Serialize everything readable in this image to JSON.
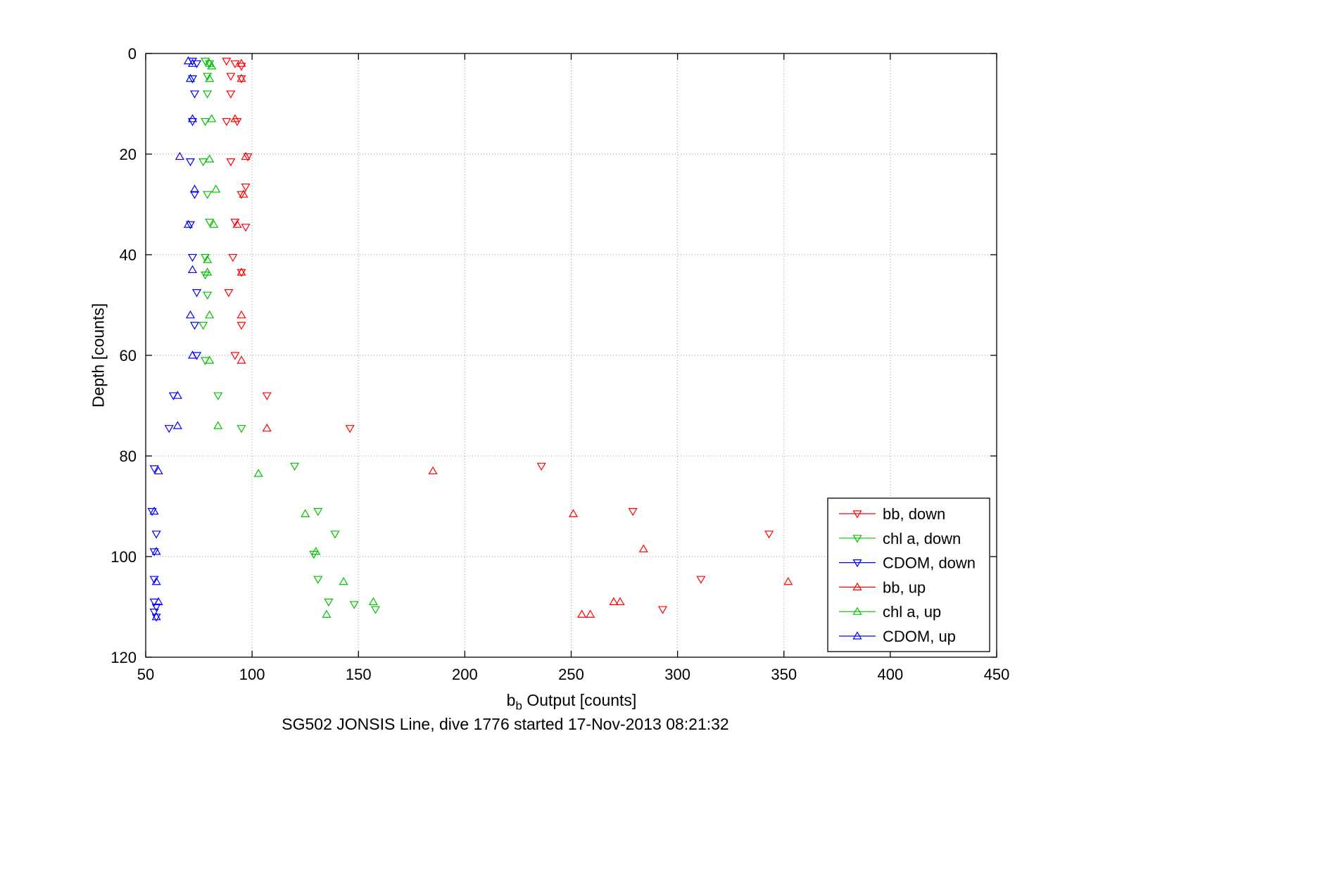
{
  "figure": {
    "bottom_title": "SG502 JONSIS Line, dive 1776 started 17-Nov-2013 08:21:32",
    "ylabel": "Depth [counts]",
    "xlabel_b": "b",
    "xlabel_sub": "b",
    "xlabel_rest": " Output [counts]"
  },
  "chart_data": {
    "type": "scatter",
    "title": "SG502 JONSIS Line, dive 1776 started 17-Nov-2013 08:21:32",
    "xlabel": "b_b Output [counts]",
    "ylabel": "Depth [counts]",
    "xlim": [
      50,
      450
    ],
    "ylim": [
      0,
      120
    ],
    "y_reversed": true,
    "xticks": [
      50,
      100,
      150,
      200,
      250,
      300,
      350,
      400,
      450
    ],
    "yticks": [
      0,
      20,
      40,
      60,
      80,
      100,
      120
    ],
    "grid": true,
    "grid_style": "dotted",
    "legend_position": "lower right",
    "series": [
      {
        "label": "bb, down",
        "marker": "triangle-down",
        "color": "#ff0000",
        "points": [
          [
            88,
            1.5
          ],
          [
            92,
            2
          ],
          [
            95,
            2.5
          ],
          [
            90,
            4.5
          ],
          [
            95,
            5
          ],
          [
            90,
            8
          ],
          [
            88,
            13.5
          ],
          [
            93,
            13.5
          ],
          [
            90,
            21.5
          ],
          [
            98,
            20.5
          ],
          [
            97,
            26.5
          ],
          [
            95,
            28
          ],
          [
            92,
            33.5
          ],
          [
            97,
            34.5
          ],
          [
            91,
            40.5
          ],
          [
            95,
            43.5
          ],
          [
            89,
            47.5
          ],
          [
            95,
            54
          ],
          [
            92,
            60
          ],
          [
            107,
            68
          ],
          [
            146,
            74.5
          ],
          [
            236,
            82
          ],
          [
            279,
            91
          ],
          [
            343,
            95.5
          ],
          [
            311,
            104.5
          ],
          [
            293,
            110.5
          ]
        ]
      },
      {
        "label": "chl a, down",
        "marker": "triangle-down",
        "color": "#00c000",
        "points": [
          [
            78,
            1.5
          ],
          [
            80,
            2
          ],
          [
            79,
            4.5
          ],
          [
            79,
            8
          ],
          [
            78,
            13.5
          ],
          [
            77,
            21.5
          ],
          [
            79,
            28
          ],
          [
            80,
            33.5
          ],
          [
            78,
            40.5
          ],
          [
            78,
            44
          ],
          [
            79,
            48
          ],
          [
            77,
            54
          ],
          [
            78,
            61
          ],
          [
            84,
            68
          ],
          [
            95,
            74.5
          ],
          [
            120,
            82
          ],
          [
            131,
            91
          ],
          [
            139,
            95.5
          ],
          [
            129,
            99.5
          ],
          [
            131,
            104.5
          ],
          [
            136,
            109
          ],
          [
            148,
            109.5
          ],
          [
            158,
            110.5
          ]
        ]
      },
      {
        "label": "CDOM, down",
        "marker": "triangle-down",
        "color": "#0000ff",
        "points": [
          [
            72,
            1.5
          ],
          [
            74,
            2
          ],
          [
            72,
            5
          ],
          [
            73,
            8
          ],
          [
            72,
            13.5
          ],
          [
            71,
            21.5
          ],
          [
            73,
            28
          ],
          [
            71,
            34
          ],
          [
            72,
            40.5
          ],
          [
            74,
            47.5
          ],
          [
            73,
            54
          ],
          [
            74,
            60
          ],
          [
            63,
            68
          ],
          [
            61,
            74.5
          ],
          [
            54,
            82.5
          ],
          [
            53,
            91
          ],
          [
            55,
            95.5
          ],
          [
            54,
            99
          ],
          [
            54,
            104.5
          ],
          [
            54,
            109
          ],
          [
            55,
            110
          ],
          [
            54,
            111
          ],
          [
            55,
            112
          ]
        ]
      },
      {
        "label": "bb, up",
        "marker": "triangle-up",
        "color": "#ff0000",
        "points": [
          [
            95,
            2
          ],
          [
            95,
            5
          ],
          [
            92,
            13
          ],
          [
            97,
            20.5
          ],
          [
            96,
            28
          ],
          [
            93,
            34
          ],
          [
            95,
            43.5
          ],
          [
            95,
            52
          ],
          [
            95,
            61
          ],
          [
            107,
            74.5
          ],
          [
            185,
            83
          ],
          [
            251,
            91.5
          ],
          [
            284,
            98.5
          ],
          [
            352,
            105
          ],
          [
            270,
            109
          ],
          [
            273,
            109
          ],
          [
            255,
            111.5
          ],
          [
            259,
            111.5
          ]
        ]
      },
      {
        "label": "chl a, up",
        "marker": "triangle-up",
        "color": "#00c000",
        "points": [
          [
            80,
            2
          ],
          [
            81,
            2.5
          ],
          [
            80,
            5
          ],
          [
            81,
            13
          ],
          [
            80,
            21
          ],
          [
            83,
            27
          ],
          [
            82,
            34
          ],
          [
            79,
            41
          ],
          [
            79,
            43.5
          ],
          [
            80,
            52
          ],
          [
            80,
            61
          ],
          [
            84,
            74
          ],
          [
            103,
            83.5
          ],
          [
            125,
            91.5
          ],
          [
            130,
            99
          ],
          [
            143,
            105
          ],
          [
            157,
            109
          ],
          [
            135,
            111.5
          ]
        ]
      },
      {
        "label": "CDOM, up",
        "marker": "triangle-up",
        "color": "#0000ff",
        "points": [
          [
            70,
            1.5
          ],
          [
            72,
            2
          ],
          [
            71,
            5
          ],
          [
            72,
            13
          ],
          [
            66,
            20.5
          ],
          [
            73,
            27
          ],
          [
            70,
            34
          ],
          [
            72,
            43
          ],
          [
            71,
            52
          ],
          [
            72,
            60
          ],
          [
            65,
            68
          ],
          [
            65,
            74
          ],
          [
            56,
            83
          ],
          [
            54,
            91
          ],
          [
            55,
            99
          ],
          [
            55,
            105
          ],
          [
            56,
            109
          ],
          [
            55,
            112
          ]
        ]
      }
    ]
  }
}
